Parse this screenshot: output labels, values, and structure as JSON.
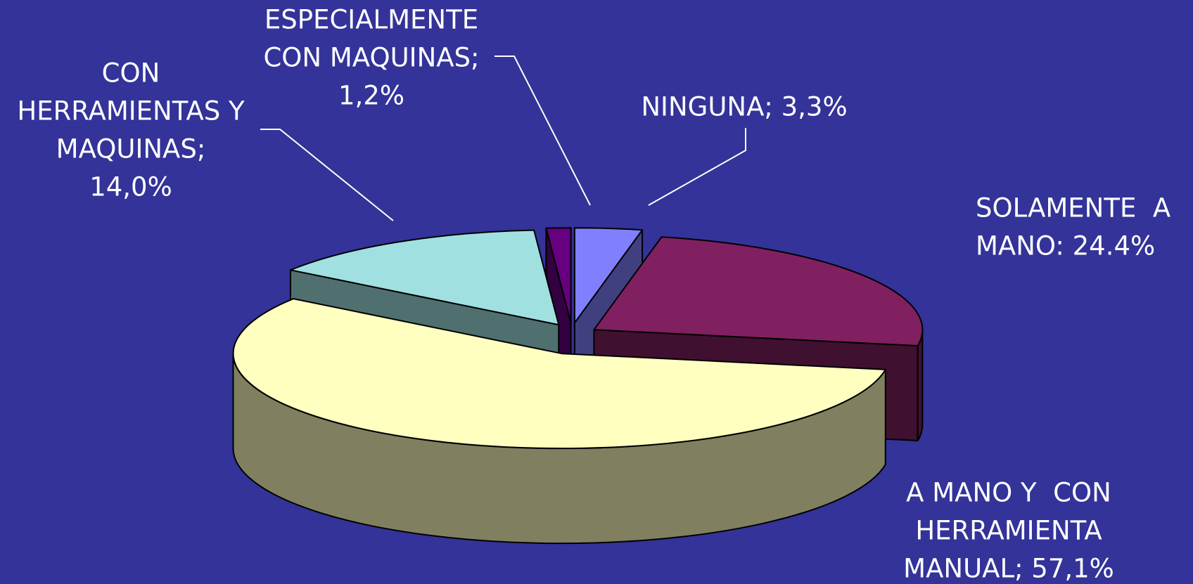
{
  "chart_data": {
    "type": "pie3d",
    "values": [
      3.3,
      24.4,
      57.1,
      14.0,
      1.2
    ],
    "value_labels": [
      [
        "NINGUNA; 3,3%"
      ],
      [
        "SOLAMENTE  A",
        "MANO: 24.4%"
      ],
      [
        "A MANO Y  CON",
        "HERRAMIENTA",
        "MANUAL; 57,1%"
      ],
      [
        "CON",
        "HERRAMIENTAS Y",
        "MAQUINAS;",
        "14,0%"
      ],
      [
        "ESPECIALMENTE",
        "CON MAQUINAS;",
        "1,2%"
      ]
    ],
    "colors": [
      "#8080ff",
      "#802060",
      "#ffffc0",
      "#a0e0e0",
      "#660080"
    ],
    "background": "#333399"
  }
}
